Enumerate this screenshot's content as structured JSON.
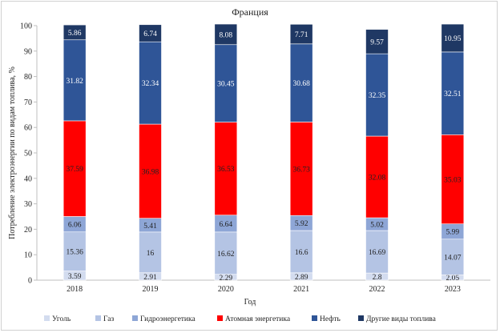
{
  "chart_data": {
    "type": "bar",
    "stacked": true,
    "title": "Франция",
    "xlabel": "Год",
    "ylabel": "Потребление электроэнергии по видам топлива, %",
    "ylim": [
      0,
      100
    ],
    "yticks": [
      0,
      10,
      20,
      30,
      40,
      50,
      60,
      70,
      80,
      90,
      100
    ],
    "grid": false,
    "legend_position": "bottom",
    "categories": [
      "2018",
      "2019",
      "2020",
      "2021",
      "2022",
      "2023"
    ],
    "series": [
      {
        "name": "Уголь",
        "color": "#d3dcef",
        "label_color": "#222222",
        "values": [
          3.59,
          2.91,
          2.29,
          2.89,
          2.8,
          2.05
        ],
        "labels": [
          "3.59",
          "2.91",
          "2.29",
          "2.89",
          "2.8",
          "2.05"
        ]
      },
      {
        "name": "Газ",
        "color": "#b4c4e4",
        "label_color": "#222222",
        "values": [
          15.36,
          16,
          16.62,
          16.6,
          16.69,
          14.07
        ],
        "labels": [
          "15.36",
          "16",
          "16.62",
          "16.6",
          "16.69",
          "14.07"
        ]
      },
      {
        "name": "Гидроэнергетика",
        "color": "#8ea6d6",
        "label_color": "#222222",
        "values": [
          6.06,
          5.41,
          6.64,
          5.92,
          5.02,
          5.99
        ],
        "labels": [
          "6.06",
          "5.41",
          "6.64",
          "5.92",
          "5.02",
          "5.99"
        ]
      },
      {
        "name": "Атомная энергетика",
        "color": "#ff0000",
        "label_color": "#222222",
        "values": [
          37.59,
          36.98,
          36.53,
          36.73,
          32.08,
          35.03
        ],
        "labels": [
          "37.59",
          "36.98",
          "36.53",
          "36.73",
          "32.08",
          "35.03"
        ]
      },
      {
        "name": "Нефть",
        "color": "#2f5597",
        "label_color": "#ffffff",
        "values": [
          31.82,
          32.34,
          30.45,
          30.68,
          32.35,
          32.51
        ],
        "labels": [
          "31.82",
          "32.34",
          "30.45",
          "30.68",
          "32.35",
          "32.51"
        ]
      },
      {
        "name": "Другие виды топлива",
        "color": "#1f3864",
        "label_color": "#ffffff",
        "values": [
          5.86,
          6.74,
          8.08,
          7.71,
          9.57,
          10.95
        ],
        "labels": [
          "5.86",
          "6.74",
          "8.08",
          "7.71",
          "9.57",
          "10.95"
        ]
      }
    ]
  }
}
